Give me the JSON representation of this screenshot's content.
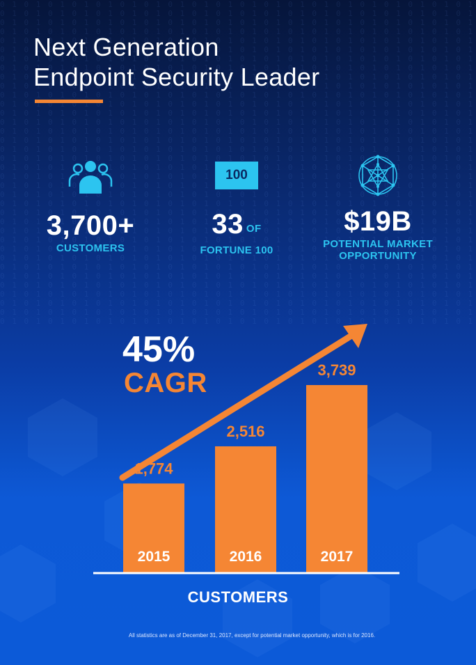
{
  "header": {
    "title_line1": "Next Generation",
    "title_line2": "Endpoint Security Leader"
  },
  "stats": {
    "customers": {
      "value": "3,700+",
      "label": "CUSTOMERS",
      "icon": "people-group-icon"
    },
    "fortune": {
      "badge": "100",
      "value": "33",
      "of": "OF",
      "label": "FORTUNE 100"
    },
    "market": {
      "value": "$19B",
      "label_line1": "POTENTIAL MARKET",
      "label_line2": "OPPORTUNITY",
      "icon": "network-globe-icon"
    }
  },
  "cagr": {
    "value": "45%",
    "label": "CAGR"
  },
  "chart_data": {
    "type": "bar",
    "categories": [
      "2015",
      "2016",
      "2017"
    ],
    "values": [
      1774,
      2516,
      3739
    ],
    "data_labels": [
      "1,774",
      "2,516",
      "3,739"
    ],
    "xlabel": "CUSTOMERS",
    "ylim": [
      0,
      4100
    ],
    "bar_color": "#f58634",
    "grid": false,
    "trend_arrow": true
  },
  "footnote": "All statistics are as of December 31, 2017, except for potential market opportunity, which is for 2016.",
  "colors": {
    "accent": "#f58634",
    "cyan": "#2cc4f0",
    "background": "#0b3da6"
  }
}
